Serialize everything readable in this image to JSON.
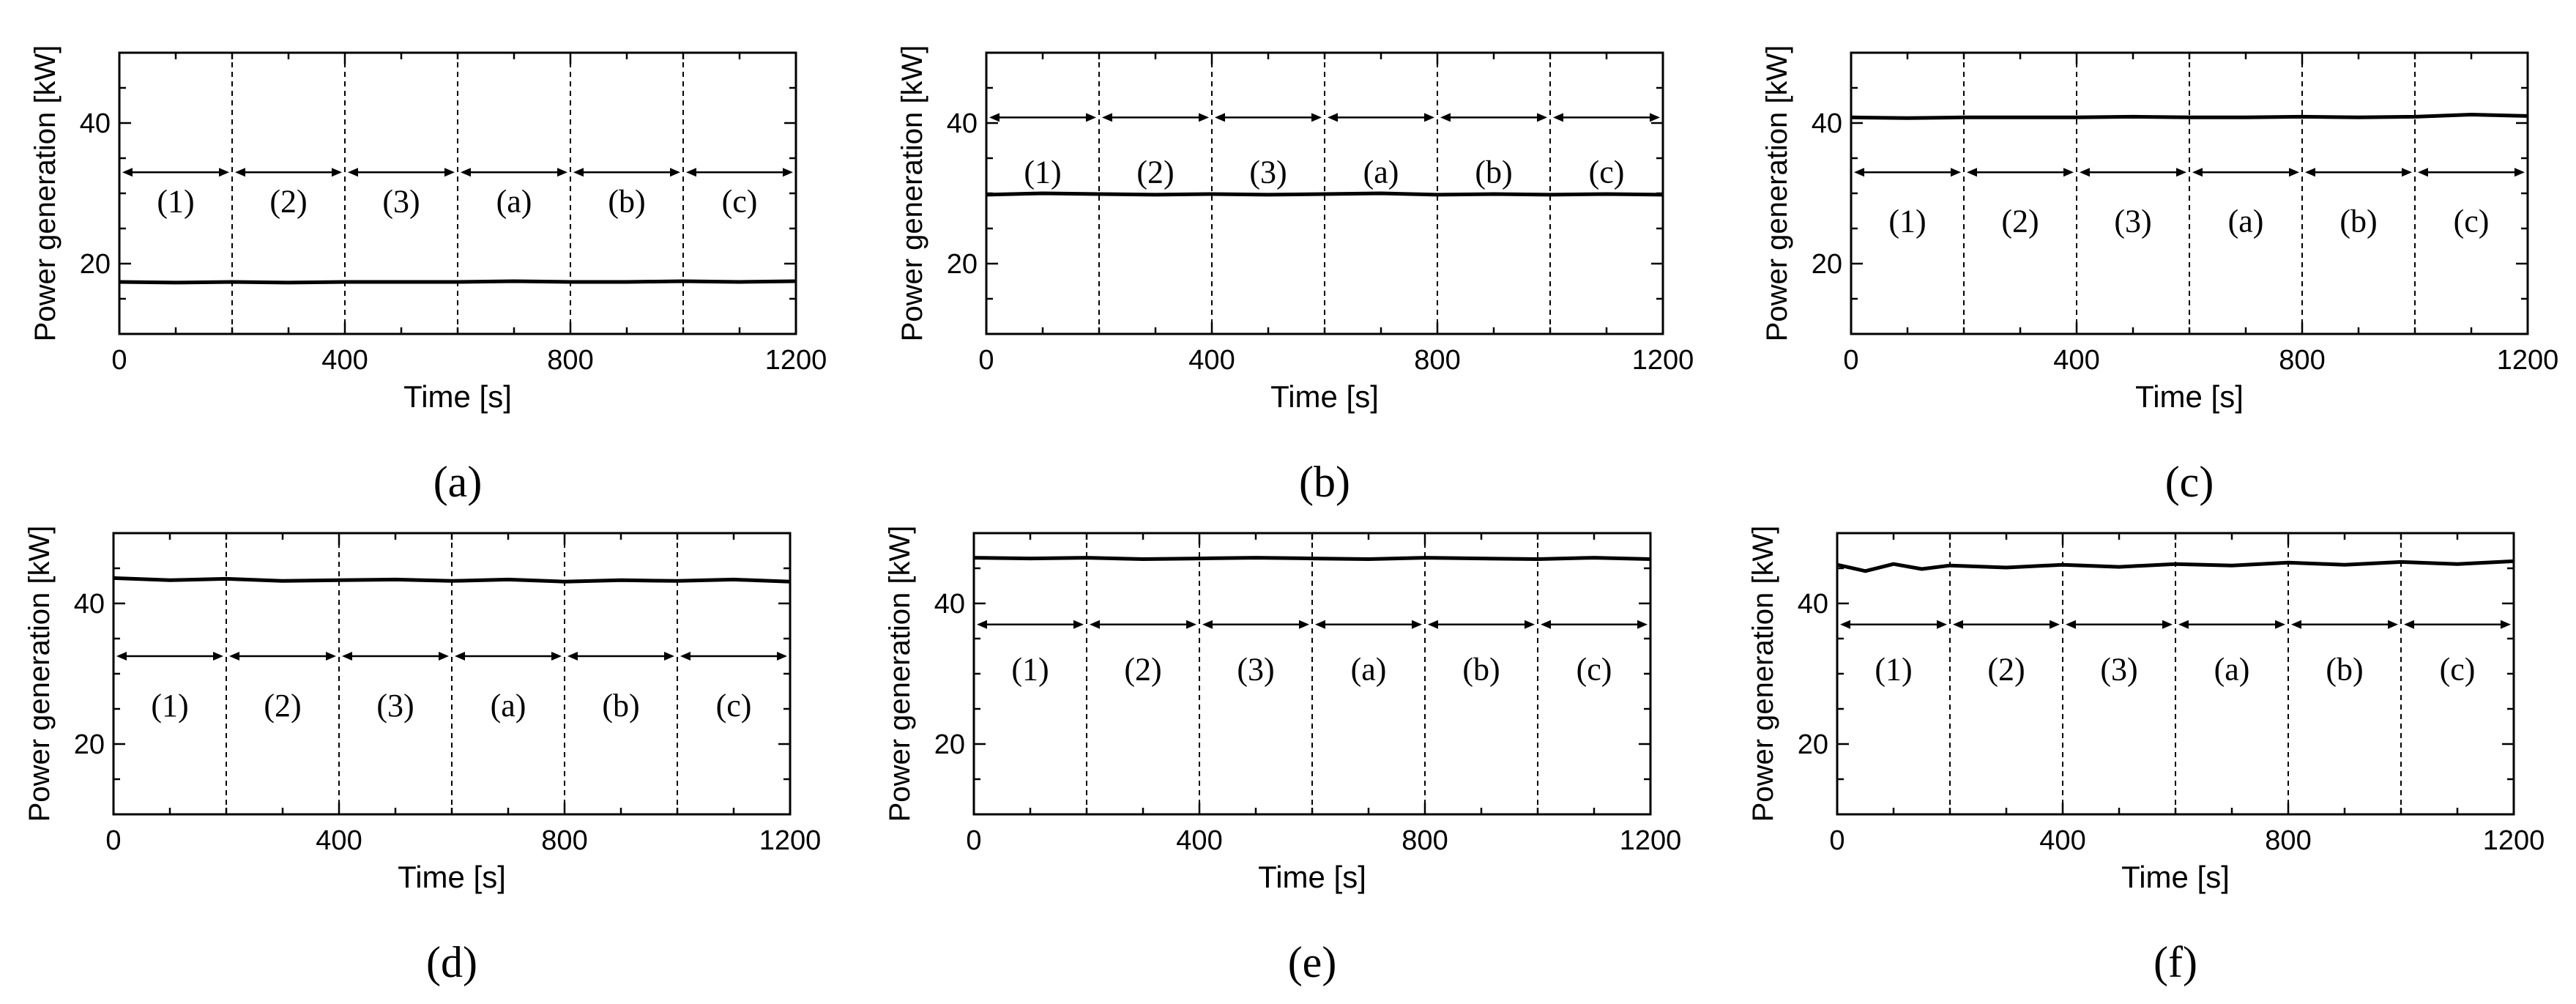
{
  "chart_data": [
    {
      "type": "line",
      "panel_label": "(a)",
      "xlabel": "Time [s]",
      "ylabel": "Power generation [kW]",
      "xlim": [
        0,
        1200
      ],
      "ylim": [
        10,
        50
      ],
      "xticks": [
        0,
        400,
        800,
        1200
      ],
      "yticks": [
        20,
        40
      ],
      "phase_boundaries": [
        200,
        400,
        600,
        800,
        1000
      ],
      "phase_labels": [
        "(1)",
        "(2)",
        "(3)",
        "(a)",
        "(b)",
        "(c)"
      ],
      "phase_arrow_y": 33,
      "phase_label_y": 29,
      "series": [
        {
          "x": [
            0,
            100,
            200,
            300,
            400,
            500,
            600,
            700,
            800,
            900,
            1000,
            1100,
            1200
          ],
          "values": [
            17.4,
            17.3,
            17.4,
            17.3,
            17.4,
            17.4,
            17.4,
            17.5,
            17.4,
            17.4,
            17.5,
            17.4,
            17.5
          ]
        }
      ]
    },
    {
      "type": "line",
      "panel_label": "(b)",
      "xlabel": "Time [s]",
      "ylabel": "Power generation [kW]",
      "xlim": [
        0,
        1200
      ],
      "ylim": [
        10,
        50
      ],
      "xticks": [
        0,
        400,
        800,
        1200
      ],
      "yticks": [
        20,
        40
      ],
      "phase_boundaries": [
        200,
        400,
        600,
        800,
        1000
      ],
      "phase_labels": [
        "(1)",
        "(2)",
        "(3)",
        "(a)",
        "(b)",
        "(c)"
      ],
      "phase_arrow_y": 40.8,
      "phase_label_y": 33.2,
      "series": [
        {
          "x": [
            0,
            100,
            200,
            300,
            400,
            500,
            600,
            700,
            800,
            900,
            1000,
            1100,
            1200
          ],
          "values": [
            29.8,
            30,
            29.9,
            29.8,
            29.9,
            29.8,
            29.9,
            30,
            29.8,
            29.9,
            29.8,
            29.9,
            29.8
          ]
        }
      ]
    },
    {
      "type": "line",
      "panel_label": "(c)",
      "xlabel": "Time [s]",
      "ylabel": "Power generation [kW]",
      "xlim": [
        0,
        1200
      ],
      "ylim": [
        10,
        50
      ],
      "xticks": [
        0,
        400,
        800,
        1200
      ],
      "yticks": [
        20,
        40
      ],
      "phase_boundaries": [
        200,
        400,
        600,
        800,
        1000
      ],
      "phase_labels": [
        "(1)",
        "(2)",
        "(3)",
        "(a)",
        "(b)",
        "(c)"
      ],
      "phase_arrow_y": 33,
      "phase_label_y": 26.2,
      "series": [
        {
          "x": [
            0,
            100,
            200,
            300,
            400,
            500,
            600,
            700,
            800,
            900,
            1000,
            1100,
            1200
          ],
          "values": [
            40.8,
            40.7,
            40.8,
            40.8,
            40.8,
            40.9,
            40.8,
            40.8,
            40.9,
            40.8,
            40.9,
            41.2,
            41
          ]
        }
      ]
    },
    {
      "type": "line",
      "panel_label": "(d)",
      "xlabel": "Time [s]",
      "ylabel": "Power generation [kW]",
      "xlim": [
        0,
        1200
      ],
      "ylim": [
        10,
        50
      ],
      "xticks": [
        0,
        400,
        800,
        1200
      ],
      "yticks": [
        20,
        40
      ],
      "phase_boundaries": [
        200,
        400,
        600,
        800,
        1000
      ],
      "phase_labels": [
        "(1)",
        "(2)",
        "(3)",
        "(a)",
        "(b)",
        "(c)"
      ],
      "phase_arrow_y": 32.5,
      "phase_label_y": 25.6,
      "series": [
        {
          "x": [
            0,
            100,
            200,
            300,
            400,
            500,
            600,
            700,
            800,
            900,
            1000,
            1100,
            1200
          ],
          "values": [
            43.6,
            43.3,
            43.5,
            43.2,
            43.3,
            43.4,
            43.2,
            43.4,
            43.1,
            43.3,
            43.2,
            43.4,
            43.1
          ]
        }
      ]
    },
    {
      "type": "line",
      "panel_label": "(e)",
      "xlabel": "Time [s]",
      "ylabel": "Power generation [kW]",
      "xlim": [
        0,
        1200
      ],
      "ylim": [
        10,
        50
      ],
      "xticks": [
        0,
        400,
        800,
        1200
      ],
      "yticks": [
        20,
        40
      ],
      "phase_boundaries": [
        200,
        400,
        600,
        800,
        1000
      ],
      "phase_labels": [
        "(1)",
        "(2)",
        "(3)",
        "(a)",
        "(b)",
        "(c)"
      ],
      "phase_arrow_y": 37,
      "phase_label_y": 30.8,
      "series": [
        {
          "x": [
            0,
            100,
            200,
            300,
            400,
            500,
            600,
            700,
            800,
            900,
            1000,
            1100,
            1200
          ],
          "values": [
            46.5,
            46.4,
            46.5,
            46.3,
            46.4,
            46.5,
            46.4,
            46.3,
            46.5,
            46.4,
            46.3,
            46.5,
            46.3
          ]
        }
      ]
    },
    {
      "type": "line",
      "panel_label": "(f)",
      "xlabel": "Time [s]",
      "ylabel": "Power generation [kW]",
      "xlim": [
        0,
        1200
      ],
      "ylim": [
        10,
        50
      ],
      "xticks": [
        0,
        400,
        800,
        1200
      ],
      "yticks": [
        20,
        40
      ],
      "phase_boundaries": [
        200,
        400,
        600,
        800,
        1000
      ],
      "phase_labels": [
        "(1)",
        "(2)",
        "(3)",
        "(a)",
        "(b)",
        "(c)"
      ],
      "phase_arrow_y": 37,
      "phase_label_y": 30.8,
      "series": [
        {
          "x": [
            0,
            50,
            100,
            150,
            200,
            300,
            400,
            500,
            600,
            700,
            800,
            900,
            1000,
            1100,
            1200
          ],
          "values": [
            45.5,
            44.6,
            45.6,
            44.9,
            45.4,
            45.1,
            45.5,
            45.2,
            45.6,
            45.4,
            45.8,
            45.5,
            45.9,
            45.6,
            46
          ]
        }
      ]
    }
  ]
}
